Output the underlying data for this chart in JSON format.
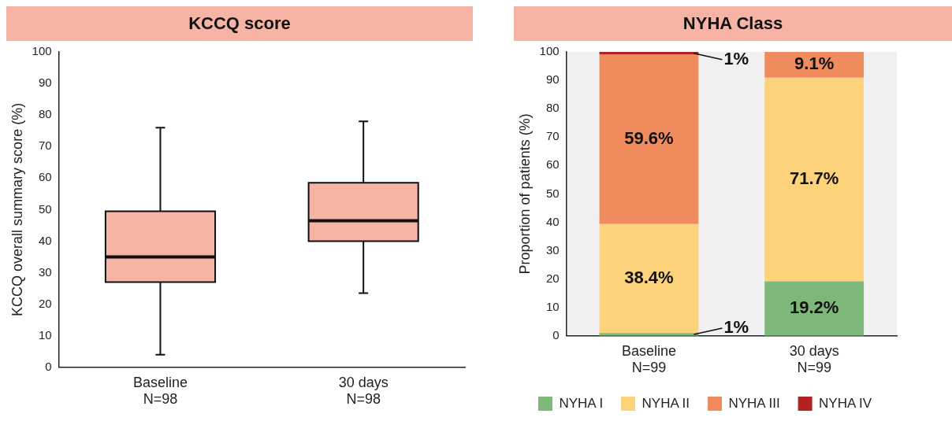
{
  "chart_data": [
    {
      "type": "box",
      "title": "KCCQ score",
      "ylabel": "KCCQ overall summary score (%)",
      "categories": [
        "Baseline\nN=98",
        "30 days\nN=98"
      ],
      "color": "#f7b3a3",
      "boxes": [
        {
          "low": 4,
          "q1": 27,
          "median": 35,
          "q3": 49.5,
          "high": 76
        },
        {
          "low": 23.5,
          "q1": 40,
          "median": 46.5,
          "q3": 58.5,
          "high": 78
        }
      ],
      "ylim": [
        0,
        100
      ],
      "yticks": [
        0,
        10,
        20,
        30,
        40,
        50,
        60,
        70,
        80,
        90,
        100
      ],
      "grid": false
    },
    {
      "type": "bar",
      "stacked": true,
      "title": "NYHA Class",
      "ylabel": "Proportion of patients (%)",
      "categories": [
        "Baseline\nN=99",
        "30 days\nN=99"
      ],
      "series": [
        {
          "name": "NYHA I",
          "color": "#7db87a",
          "values": [
            1,
            19.2
          ],
          "value_labels": [
            "1%",
            "19.2%"
          ]
        },
        {
          "name": "NYHA II",
          "color": "#fcd37a",
          "values": [
            38.4,
            71.7
          ],
          "value_labels": [
            "38.4%",
            "71.7%"
          ]
        },
        {
          "name": "NYHA III",
          "color": "#f08b5e",
          "values": [
            59.6,
            9.1
          ],
          "value_labels": [
            "59.6%",
            "9.1%"
          ]
        },
        {
          "name": "NYHA IV",
          "color": "#b22222",
          "values": [
            1,
            0
          ],
          "value_labels": [
            "1%",
            null
          ]
        }
      ],
      "ylim": [
        0,
        100
      ],
      "yticks": [
        0,
        10,
        20,
        30,
        40,
        50,
        60,
        70,
        80,
        90,
        100
      ],
      "legend": "bottom",
      "grid": false
    }
  ]
}
